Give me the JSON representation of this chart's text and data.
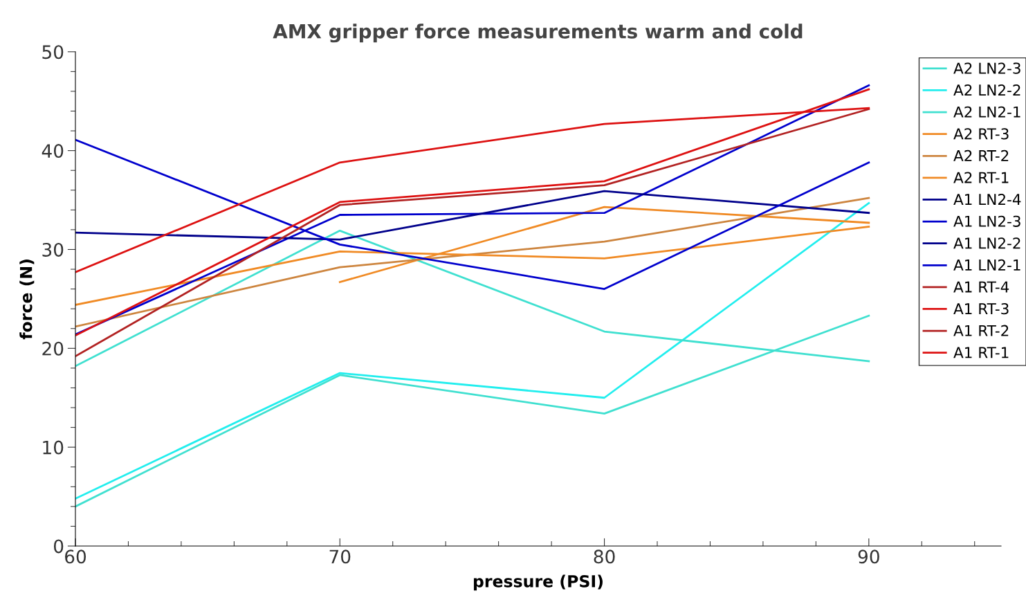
{
  "chart_data": {
    "type": "line",
    "title": "AMX gripper force measurements warm and cold",
    "xlabel": "pressure (PSI)",
    "ylabel": "force (N)",
    "x": [
      60,
      70,
      80,
      90
    ],
    "series": [
      {
        "name": "A2 LN2-3",
        "color": "#40e0d0",
        "values": [
          4.0,
          17.3,
          13.4,
          23.3
        ]
      },
      {
        "name": "A2 LN2-2",
        "color": "#22eeee",
        "values": [
          4.8,
          17.5,
          15.0,
          34.7
        ]
      },
      {
        "name": "A2 LN2-1",
        "color": "#40e0d0",
        "values": [
          18.2,
          31.9,
          21.7,
          18.7
        ]
      },
      {
        "name": "A2 RT-3",
        "color": "#f08a24",
        "values": [
          null,
          26.7,
          34.3,
          32.7
        ]
      },
      {
        "name": "A2 RT-2",
        "color": "#cd853f",
        "values": [
          22.2,
          28.2,
          30.8,
          35.2
        ]
      },
      {
        "name": "A2 RT-1",
        "color": "#f08a24",
        "values": [
          24.4,
          29.8,
          29.1,
          32.3
        ]
      },
      {
        "name": "A1 LN2-4",
        "color": "#00008b",
        "values": [
          null,
          null,
          null,
          null
        ]
      },
      {
        "name": "A1 LN2-3",
        "color": "#0000cd",
        "values": [
          21.4,
          33.5,
          33.7,
          46.6
        ]
      },
      {
        "name": "A1 LN2-2",
        "color": "#00008b",
        "values": [
          31.7,
          31.0,
          35.9,
          33.7
        ]
      },
      {
        "name": "A1 LN2-1",
        "color": "#0000cd",
        "values": [
          41.1,
          30.5,
          26.0,
          38.8
        ]
      },
      {
        "name": "A1 RT-4",
        "color": "#b22222",
        "values": [
          null,
          null,
          null,
          null
        ]
      },
      {
        "name": "A1 RT-3",
        "color": "#dd1111",
        "values": [
          21.3,
          34.8,
          36.9,
          46.2
        ]
      },
      {
        "name": "A1 RT-2",
        "color": "#b22222",
        "values": [
          19.2,
          34.5,
          36.5,
          44.2
        ]
      },
      {
        "name": "A1 RT-1",
        "color": "#dd1111",
        "values": [
          27.7,
          38.8,
          42.7,
          44.3
        ]
      }
    ],
    "xlim": [
      60,
      95
    ],
    "xticks": [
      60,
      {
        "value": 62,
        "label": null
      },
      {
        "value": 64,
        "label": null
      },
      {
        "value": 66,
        "label": null
      },
      {
        "value": 68,
        "label": null
      },
      70,
      {
        "value": 72,
        "label": null
      },
      {
        "value": 74,
        "label": null
      },
      {
        "value": 76,
        "label": null
      },
      {
        "value": 78,
        "label": null
      },
      80,
      {
        "value": 82,
        "label": null
      },
      {
        "value": 84,
        "label": null
      },
      {
        "value": 86,
        "label": null
      },
      {
        "value": 88,
        "label": null
      },
      90,
      {
        "value": 92,
        "label": null
      },
      {
        "value": 94,
        "label": null
      }
    ],
    "ylim": [
      0,
      50
    ],
    "yticks": [
      0,
      {
        "value": 2,
        "label": null
      },
      {
        "value": 4,
        "label": null
      },
      {
        "value": 6,
        "label": null
      },
      {
        "value": 8,
        "label": null
      },
      10,
      {
        "value": 12,
        "label": null
      },
      {
        "value": 14,
        "label": null
      },
      {
        "value": 16,
        "label": null
      },
      {
        "value": 18,
        "label": null
      },
      20,
      {
        "value": 22,
        "label": null
      },
      {
        "value": 24,
        "label": null
      },
      {
        "value": 26,
        "label": null
      },
      {
        "value": 28,
        "label": null
      },
      30,
      {
        "value": 32,
        "label": null
      },
      {
        "value": 34,
        "label": null
      },
      {
        "value": 36,
        "label": null
      },
      {
        "value": 38,
        "label": null
      },
      40,
      {
        "value": 42,
        "label": null
      },
      {
        "value": 44,
        "label": null
      },
      {
        "value": 46,
        "label": null
      },
      {
        "value": 48,
        "label": null
      },
      50
    ],
    "grid": false,
    "legend": "top right",
    "marker": "none",
    "line_style": "solid"
  }
}
